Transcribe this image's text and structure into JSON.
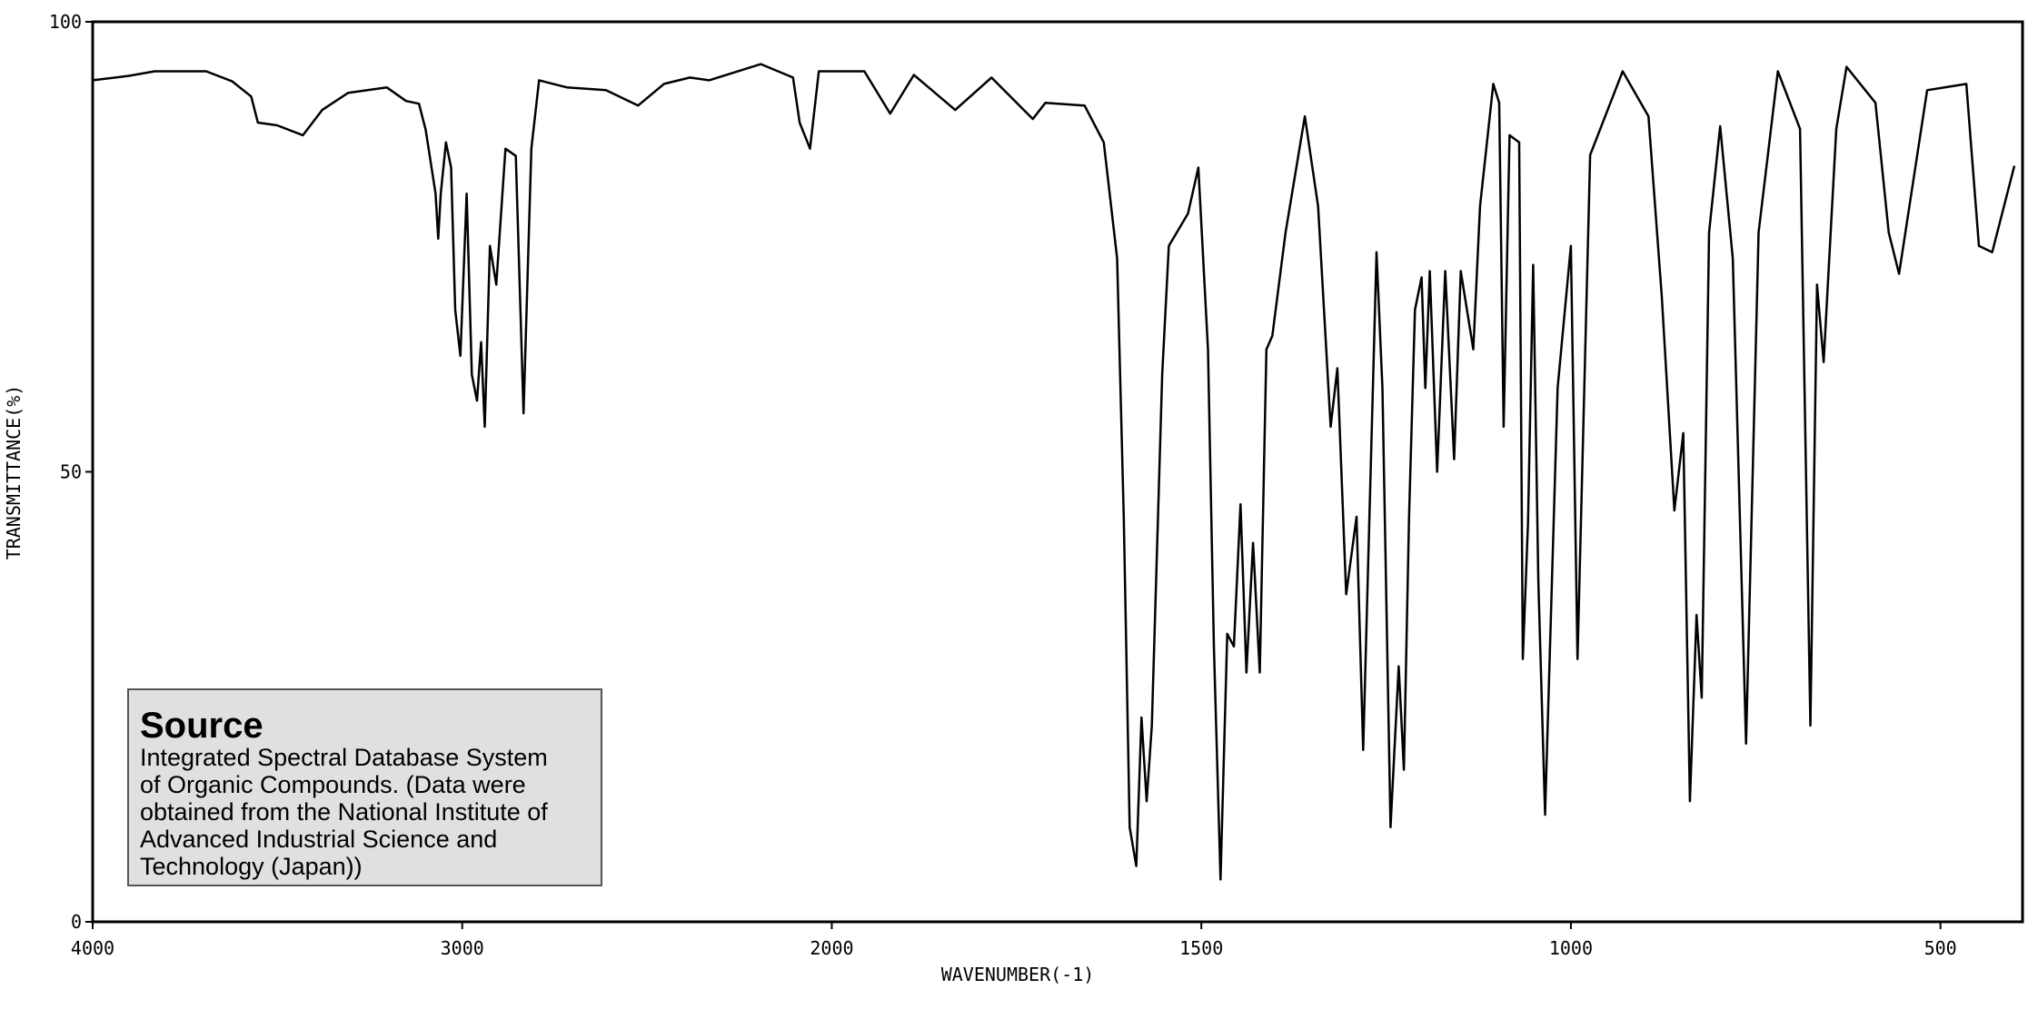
{
  "chart_data": {
    "type": "line",
    "x_label": "WAVENUMBER(-1)",
    "y_label": "TRANSMITTANCE(%)",
    "xlim": [
      4000,
      400
    ],
    "xticks": [
      4000,
      3000,
      2000,
      1500,
      1000,
      500
    ],
    "ylim": [
      0,
      100
    ],
    "yticks": [
      0,
      50,
      100
    ],
    "color": "#000000",
    "x": [
      4000,
      3902,
      3832,
      3693,
      3623,
      3571,
      3553,
      3501,
      3431,
      3379,
      3309,
      3204,
      3152,
      3117,
      3099,
      3072,
      3065,
      3058,
      3044,
      3030,
      3019,
      3005,
      2988,
      2974,
      2960,
      2949,
      2939,
      2925,
      2908,
      2883,
      2855,
      2834,
      2813,
      2792,
      2716,
      2611,
      2524,
      2454,
      2384,
      2332,
      2192,
      2105,
      2087,
      2059,
      2035,
      1956,
      1921,
      1889,
      1833,
      1784,
      1728,
      1711,
      1658,
      1632,
      1614,
      1605,
      1597,
      1588,
      1581,
      1574,
      1567,
      1553,
      1544,
      1518,
      1504,
      1491,
      1483,
      1474,
      1465,
      1456,
      1447,
      1439,
      1430,
      1421,
      1412,
      1404,
      1386,
      1360,
      1342,
      1325,
      1316,
      1304,
      1290,
      1281,
      1263,
      1255,
      1244,
      1233,
      1226,
      1219,
      1211,
      1202,
      1197,
      1191,
      1181,
      1170,
      1158,
      1149,
      1132,
      1123,
      1105,
      1097,
      1091,
      1083,
      1070,
      1065,
      1058,
      1051,
      1044,
      1035,
      1018,
      1000,
      991,
      974,
      930,
      895,
      877,
      860,
      848,
      839,
      830,
      823,
      813,
      798,
      781,
      763,
      746,
      720,
      690,
      676,
      667,
      658,
      641,
      627,
      588,
      570,
      556,
      518,
      465,
      448,
      430,
      400
    ],
    "values": [
      93.5,
      94,
      94.5,
      94.5,
      93.4,
      91.7,
      88.8,
      88.5,
      87.4,
      90.2,
      92.1,
      92.7,
      91.2,
      90.9,
      88,
      80.9,
      75.9,
      80.9,
      86.6,
      83.8,
      68,
      62.9,
      80.9,
      60.8,
      57.9,
      64.4,
      55,
      75.1,
      70.8,
      85.9,
      85.1,
      56.5,
      85.9,
      93.5,
      92.7,
      92.4,
      90.7,
      93.1,
      93.8,
      93.5,
      95.3,
      93.8,
      88.8,
      85.9,
      94.5,
      94.5,
      89.8,
      94.1,
      90.2,
      93.8,
      89.2,
      91,
      90.7,
      86.6,
      73.7,
      45,
      10.5,
      6.2,
      22.7,
      13.4,
      21.8,
      60.8,
      75.1,
      78.7,
      83.8,
      63.6,
      30.6,
      4.7,
      32,
      30.6,
      46.4,
      27.7,
      42.1,
      27.7,
      63.6,
      65.1,
      76.6,
      89.5,
      79.5,
      55,
      61.5,
      36.4,
      45,
      19.1,
      74.4,
      59.3,
      10.5,
      28.4,
      16.9,
      45,
      68,
      71.6,
      59.3,
      72.3,
      50,
      72.3,
      51.4,
      72.3,
      63.6,
      79.5,
      93.1,
      91,
      55,
      87.4,
      86.6,
      29.2,
      44.3,
      73,
      37.8,
      11.9,
      59.3,
      75.1,
      29.2,
      85.2,
      94.5,
      89.5,
      69.4,
      45.7,
      54.3,
      13.4,
      34.1,
      24.9,
      76.6,
      88.4,
      73.7,
      19.8,
      76.6,
      94.5,
      88.1,
      21.8,
      70.8,
      62.2,
      88.1,
      95,
      91,
      76.6,
      72,
      92.4,
      93.1,
      75.1,
      74.4,
      84
    ]
  },
  "source": {
    "title": "Source",
    "lines": [
      "Integrated Spectral Database System",
      "of Organic Compounds. (Data were",
      "obtained from the National Institute of",
      "Advanced Industrial Science and",
      "Technology (Japan))"
    ]
  }
}
